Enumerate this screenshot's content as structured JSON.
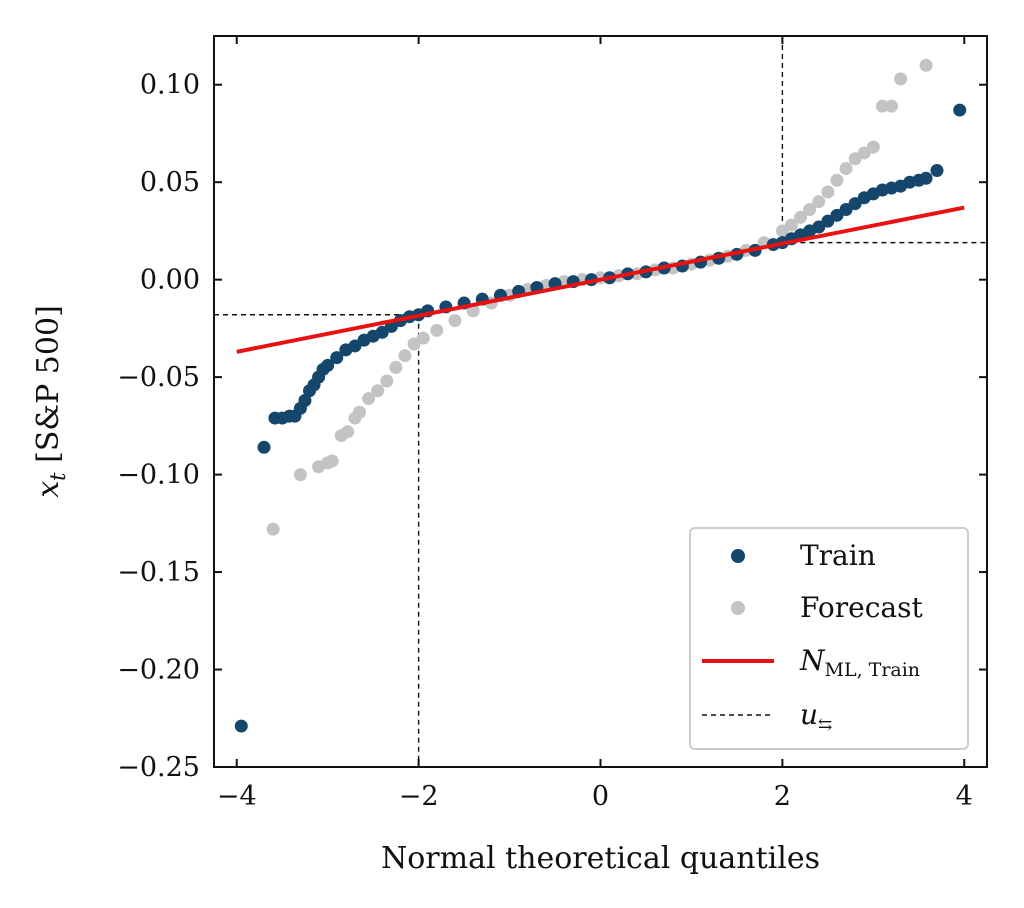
{
  "chart_data": {
    "type": "scatter",
    "xlabel": "Normal theoretical quantiles",
    "ylabel": "x_t [S&P 500]",
    "xlim": [
      -4.25,
      4.25
    ],
    "ylim": [
      -0.25,
      0.125
    ],
    "xticks": [
      -4,
      -2,
      0,
      2,
      4
    ],
    "xtick_labels": [
      "−4",
      "−2",
      "0",
      "2",
      "4"
    ],
    "yticks": [
      -0.25,
      -0.2,
      -0.15,
      -0.1,
      -0.05,
      0.0,
      0.05,
      0.1
    ],
    "ytick_labels": [
      "−0.25",
      "−0.20",
      "−0.15",
      "−0.10",
      "−0.05",
      "0.00",
      "0.05",
      "0.10"
    ],
    "grid": false,
    "legend": {
      "position": "lower-right",
      "entries": [
        {
          "label": "Train",
          "marker": "dot",
          "color": "#15466b"
        },
        {
          "label": "Forecast",
          "marker": "dot",
          "color": "#c3c3c3"
        },
        {
          "label": "N ML, Train",
          "marker": "line",
          "color": "#e81212"
        },
        {
          "label": "u",
          "marker": "dashed",
          "color": "#111111"
        }
      ]
    },
    "series": [
      {
        "name": "Train",
        "color": "#15466b",
        "points": [
          [
            -3.95,
            -0.229
          ],
          [
            -3.7,
            -0.086
          ],
          [
            -3.58,
            -0.071
          ],
          [
            -3.5,
            -0.071
          ],
          [
            -3.42,
            -0.07
          ],
          [
            -3.36,
            -0.07
          ],
          [
            -3.3,
            -0.066
          ],
          [
            -3.25,
            -0.062
          ],
          [
            -3.2,
            -0.057
          ],
          [
            -3.15,
            -0.054
          ],
          [
            -3.1,
            -0.05
          ],
          [
            -3.05,
            -0.046
          ],
          [
            -3.0,
            -0.044
          ],
          [
            -2.9,
            -0.04
          ],
          [
            -2.8,
            -0.036
          ],
          [
            -2.7,
            -0.034
          ],
          [
            -2.6,
            -0.031
          ],
          [
            -2.5,
            -0.029
          ],
          [
            -2.4,
            -0.027
          ],
          [
            -2.3,
            -0.024
          ],
          [
            -2.2,
            -0.021
          ],
          [
            -2.1,
            -0.019
          ],
          [
            -2.0,
            -0.018
          ],
          [
            -1.9,
            -0.016
          ],
          [
            -1.7,
            -0.014
          ],
          [
            -1.5,
            -0.012
          ],
          [
            -1.3,
            -0.01
          ],
          [
            -1.1,
            -0.008
          ],
          [
            -0.9,
            -0.006
          ],
          [
            -0.7,
            -0.004
          ],
          [
            -0.5,
            -0.002
          ],
          [
            -0.3,
            -0.001
          ],
          [
            -0.1,
            0.0
          ],
          [
            0.1,
            0.001
          ],
          [
            0.3,
            0.003
          ],
          [
            0.5,
            0.004
          ],
          [
            0.7,
            0.006
          ],
          [
            0.9,
            0.007
          ],
          [
            1.1,
            0.009
          ],
          [
            1.3,
            0.011
          ],
          [
            1.5,
            0.013
          ],
          [
            1.7,
            0.015
          ],
          [
            1.9,
            0.018
          ],
          [
            2.0,
            0.019
          ],
          [
            2.1,
            0.021
          ],
          [
            2.2,
            0.023
          ],
          [
            2.3,
            0.025
          ],
          [
            2.4,
            0.027
          ],
          [
            2.5,
            0.03
          ],
          [
            2.6,
            0.033
          ],
          [
            2.7,
            0.036
          ],
          [
            2.8,
            0.039
          ],
          [
            2.9,
            0.042
          ],
          [
            3.0,
            0.044
          ],
          [
            3.1,
            0.046
          ],
          [
            3.2,
            0.047
          ],
          [
            3.3,
            0.048
          ],
          [
            3.4,
            0.05
          ],
          [
            3.5,
            0.051
          ],
          [
            3.58,
            0.052
          ],
          [
            3.7,
            0.056
          ],
          [
            3.95,
            0.087
          ]
        ]
      },
      {
        "name": "Forecast",
        "color": "#c3c3c3",
        "points": [
          [
            -3.6,
            -0.128
          ],
          [
            -3.3,
            -0.1
          ],
          [
            -3.1,
            -0.096
          ],
          [
            -3.0,
            -0.094
          ],
          [
            -2.95,
            -0.093
          ],
          [
            -2.85,
            -0.08
          ],
          [
            -2.78,
            -0.078
          ],
          [
            -2.7,
            -0.071
          ],
          [
            -2.65,
            -0.068
          ],
          [
            -2.55,
            -0.061
          ],
          [
            -2.45,
            -0.057
          ],
          [
            -2.35,
            -0.052
          ],
          [
            -2.25,
            -0.045
          ],
          [
            -2.15,
            -0.039
          ],
          [
            -2.05,
            -0.033
          ],
          [
            -1.95,
            -0.03
          ],
          [
            -1.8,
            -0.026
          ],
          [
            -1.6,
            -0.021
          ],
          [
            -1.4,
            -0.016
          ],
          [
            -1.2,
            -0.012
          ],
          [
            -1.0,
            -0.008
          ],
          [
            -0.8,
            -0.005
          ],
          [
            -0.6,
            -0.003
          ],
          [
            -0.4,
            -0.001
          ],
          [
            -0.2,
            0.0
          ],
          [
            0.0,
            0.001
          ],
          [
            0.2,
            0.002
          ],
          [
            0.4,
            0.003
          ],
          [
            0.6,
            0.005
          ],
          [
            0.8,
            0.006
          ],
          [
            1.0,
            0.008
          ],
          [
            1.2,
            0.01
          ],
          [
            1.4,
            0.012
          ],
          [
            1.6,
            0.015
          ],
          [
            1.8,
            0.019
          ],
          [
            2.0,
            0.025
          ],
          [
            2.1,
            0.028
          ],
          [
            2.2,
            0.032
          ],
          [
            2.3,
            0.036
          ],
          [
            2.4,
            0.04
          ],
          [
            2.5,
            0.045
          ],
          [
            2.6,
            0.051
          ],
          [
            2.7,
            0.057
          ],
          [
            2.8,
            0.062
          ],
          [
            2.9,
            0.065
          ],
          [
            3.0,
            0.068
          ],
          [
            3.1,
            0.089
          ],
          [
            3.2,
            0.089
          ],
          [
            3.3,
            0.103
          ],
          [
            3.58,
            0.11
          ]
        ]
      }
    ],
    "fit_line": {
      "name": "N ML, Train",
      "color": "#e81212",
      "x": [
        -4.0,
        4.0
      ],
      "y": [
        -0.037,
        0.037
      ]
    },
    "threshold_lines": {
      "name": "u",
      "color": "#111111",
      "lower": {
        "x": -2.0,
        "y": -0.018
      },
      "upper": {
        "x": 2.0,
        "y": 0.019
      }
    }
  }
}
